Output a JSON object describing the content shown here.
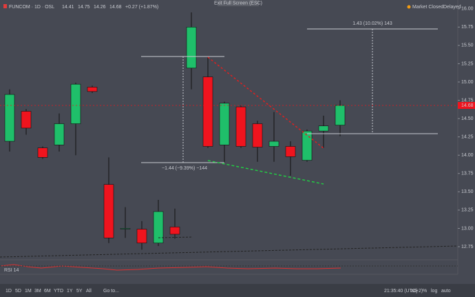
{
  "chart_data": {
    "type": "candlestick",
    "title": "FUNCOM · 1D · OSL",
    "header_change": "+0.27 (+1.87%)",
    "open": [
      14.19,
      14.6,
      14.1,
      14.14,
      14.43,
      14.93,
      13.6,
      13.0,
      12.99,
      12.8,
      13.02,
      15.19,
      15.07,
      14.14,
      14.66,
      14.43,
      14.12,
      14.12,
      13.93,
      14.33,
      14.41
    ],
    "high": [
      14.9,
      14.63,
      14.12,
      14.57,
      14.99,
      14.95,
      13.97,
      13.29,
      13.1,
      13.39,
      13.27,
      15.95,
      15.34,
      14.73,
      14.68,
      14.47,
      14.59,
      14.19,
      14.35,
      14.54,
      14.75
    ],
    "low": [
      14.05,
      14.28,
      13.95,
      14.05,
      14.0,
      14.85,
      12.8,
      12.87,
      12.71,
      12.76,
      12.86,
      14.9,
      14.1,
      13.9,
      14.1,
      13.91,
      13.91,
      13.72,
      13.91,
      14.1,
      14.26
    ],
    "close": [
      14.83,
      14.37,
      13.97,
      14.43,
      14.97,
      14.87,
      12.87,
      13.0,
      12.8,
      13.23,
      12.92,
      15.75,
      14.12,
      14.71,
      14.12,
      14.11,
      14.19,
      13.98,
      14.33,
      14.4,
      14.68
    ],
    "up_color": "#1fbf6a",
    "down_color": "#f0141e",
    "ylim": [
      12.59,
      16.12
    ],
    "yticks": [
      {
        "value": 12.75,
        "label": "12.75"
      },
      {
        "value": 13,
        "label": "13.00"
      },
      {
        "value": 13.25,
        "label": "13.25"
      },
      {
        "value": 13.5,
        "label": "13.50"
      },
      {
        "value": 13.75,
        "label": "13.75"
      },
      {
        "value": 14,
        "label": "14.00"
      },
      {
        "value": 14.25,
        "label": "14.25"
      },
      {
        "value": 14.5,
        "label": "14.50"
      },
      {
        "value": 14.75,
        "label": "14.75"
      },
      {
        "value": 15,
        "label": "15.00"
      },
      {
        "value": 15.25,
        "label": "15.25"
      },
      {
        "value": 15.5,
        "label": "15.50"
      },
      {
        "value": 15.75,
        "label": "15.75"
      },
      {
        "value": 16,
        "label": "16.00"
      }
    ],
    "annotations": [
      "1.43 (10.02%) 143",
      "−1.44 (−9.39%) −144"
    ],
    "fullscreen_hint": "Exit Full Screen (ESC)",
    "status": [
      "Market Closed",
      "Delayed"
    ],
    "ranges": [
      "1D",
      "5D",
      "1M",
      "3M",
      "6M",
      "YTD",
      "1Y",
      "5Y",
      "All"
    ],
    "goto": "Go to...",
    "clock": "21:35:40 (UTC+2)",
    "options": [
      "adj",
      "%",
      "log",
      "auto"
    ]
  }
}
